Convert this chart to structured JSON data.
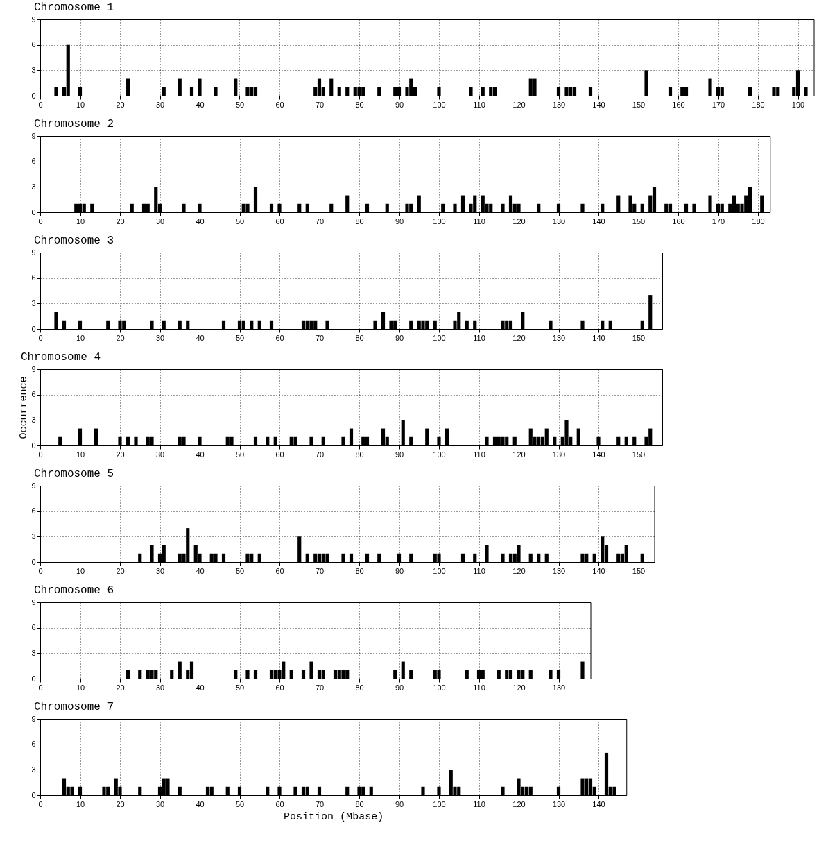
{
  "chart_data": [
    {
      "type": "bar",
      "title": "Chromosome 1",
      "color": "#000000",
      "grid": true,
      "ylim": [
        0,
        9
      ],
      "yticks": [
        0,
        3,
        6,
        9
      ],
      "xlim": [
        0,
        194
      ],
      "xticks": [
        0,
        10,
        20,
        30,
        40,
        50,
        60,
        70,
        80,
        90,
        100,
        110,
        120,
        130,
        140,
        150,
        160,
        170,
        180,
        190
      ],
      "x": [
        4,
        6,
        7,
        10,
        22,
        31,
        35,
        38,
        40,
        44,
        49,
        52,
        53,
        54,
        69,
        70,
        71,
        73,
        75,
        77,
        79,
        80,
        81,
        85,
        89,
        90,
        92,
        93,
        94,
        100,
        108,
        111,
        113,
        114,
        123,
        124,
        130,
        132,
        133,
        134,
        138,
        152,
        158,
        161,
        162,
        168,
        170,
        171,
        178,
        184,
        185,
        189,
        190,
        192
      ],
      "values": [
        1,
        1,
        6,
        1,
        2,
        1,
        2,
        1,
        2,
        1,
        2,
        1,
        1,
        1,
        1,
        2,
        1,
        2,
        1,
        1,
        1,
        1,
        1,
        1,
        1,
        1,
        1,
        2,
        1,
        1,
        1,
        1,
        1,
        1,
        2,
        2,
        1,
        1,
        1,
        1,
        1,
        3,
        1,
        1,
        1,
        2,
        1,
        1,
        1,
        1,
        1,
        1,
        3,
        1
      ]
    },
    {
      "type": "bar",
      "title": "Chromosome 2",
      "color": "#000000",
      "grid": true,
      "ylim": [
        0,
        9
      ],
      "yticks": [
        0,
        3,
        6,
        9
      ],
      "xlim": [
        0,
        183
      ],
      "xticks": [
        0,
        10,
        20,
        30,
        40,
        50,
        60,
        70,
        80,
        90,
        100,
        110,
        120,
        130,
        140,
        150,
        160,
        170,
        180
      ],
      "x": [
        9,
        10,
        11,
        13,
        23,
        26,
        27,
        29,
        30,
        36,
        40,
        51,
        52,
        54,
        58,
        60,
        65,
        67,
        73,
        77,
        82,
        87,
        92,
        93,
        95,
        101,
        104,
        106,
        108,
        109,
        111,
        112,
        113,
        116,
        118,
        119,
        120,
        125,
        130,
        136,
        141,
        145,
        148,
        149,
        151,
        153,
        154,
        157,
        158,
        162,
        164,
        168,
        170,
        171,
        173,
        174,
        175,
        176,
        177,
        178,
        181
      ],
      "values": [
        1,
        1,
        1,
        1,
        1,
        1,
        1,
        3,
        1,
        1,
        1,
        1,
        1,
        3,
        1,
        1,
        1,
        1,
        1,
        2,
        1,
        1,
        1,
        1,
        2,
        1,
        1,
        2,
        1,
        2,
        2,
        1,
        1,
        1,
        2,
        1,
        1,
        1,
        1,
        1,
        1,
        2,
        2,
        1,
        1,
        2,
        3,
        1,
        1,
        1,
        1,
        2,
        1,
        1,
        1,
        2,
        1,
        1,
        2,
        3,
        2
      ]
    },
    {
      "type": "bar",
      "title": "Chromosome 3",
      "color": "#000000",
      "grid": true,
      "ylim": [
        0,
        9
      ],
      "yticks": [
        0,
        3,
        6,
        9
      ],
      "xlim": [
        0,
        156
      ],
      "xticks": [
        0,
        10,
        20,
        30,
        40,
        50,
        60,
        70,
        80,
        90,
        100,
        110,
        120,
        130,
        140,
        150
      ],
      "x": [
        4,
        6,
        10,
        17,
        20,
        21,
        28,
        31,
        35,
        37,
        46,
        50,
        51,
        53,
        55,
        58,
        66,
        67,
        68,
        69,
        72,
        84,
        86,
        88,
        89,
        93,
        95,
        96,
        97,
        99,
        104,
        105,
        107,
        109,
        116,
        117,
        118,
        121,
        128,
        136,
        141,
        143,
        151,
        153
      ],
      "values": [
        2,
        1,
        1,
        1,
        1,
        1,
        1,
        1,
        1,
        1,
        1,
        1,
        1,
        1,
        1,
        1,
        1,
        1,
        1,
        1,
        1,
        1,
        2,
        1,
        1,
        1,
        1,
        1,
        1,
        1,
        1,
        2,
        1,
        1,
        1,
        1,
        1,
        2,
        1,
        1,
        1,
        1,
        1,
        4
      ]
    },
    {
      "type": "bar",
      "title": "Chromosome 4",
      "ylabel": "Occurrence",
      "color": "#000000",
      "grid": true,
      "ylim": [
        0,
        9
      ],
      "yticks": [
        0,
        3,
        6,
        9
      ],
      "xlim": [
        0,
        156
      ],
      "xticks": [
        0,
        10,
        20,
        30,
        40,
        50,
        60,
        70,
        80,
        90,
        100,
        110,
        120,
        130,
        140,
        150
      ],
      "x": [
        5,
        10,
        14,
        20,
        22,
        24,
        27,
        28,
        35,
        36,
        40,
        47,
        48,
        54,
        57,
        59,
        63,
        64,
        68,
        71,
        76,
        78,
        81,
        82,
        86,
        87,
        91,
        93,
        97,
        100,
        102,
        112,
        114,
        115,
        116,
        117,
        119,
        123,
        124,
        125,
        126,
        127,
        129,
        131,
        132,
        133,
        135,
        140,
        145,
        147,
        149,
        152,
        153
      ],
      "values": [
        1,
        2,
        2,
        1,
        1,
        1,
        1,
        1,
        1,
        1,
        1,
        1,
        1,
        1,
        1,
        1,
        1,
        1,
        1,
        1,
        1,
        2,
        1,
        1,
        2,
        1,
        3,
        1,
        2,
        1,
        2,
        1,
        1,
        1,
        1,
        1,
        1,
        2,
        1,
        1,
        1,
        2,
        1,
        1,
        3,
        1,
        2,
        1,
        1,
        1,
        1,
        1,
        2
      ]
    },
    {
      "type": "bar",
      "title": "Chromosome 5",
      "color": "#000000",
      "grid": true,
      "ylim": [
        0,
        9
      ],
      "yticks": [
        0,
        3,
        6,
        9
      ],
      "xlim": [
        0,
        154
      ],
      "xticks": [
        0,
        10,
        20,
        30,
        40,
        50,
        60,
        70,
        80,
        90,
        100,
        110,
        120,
        130,
        140,
        150
      ],
      "x": [
        25,
        28,
        30,
        31,
        35,
        36,
        37,
        39,
        40,
        43,
        44,
        46,
        52,
        53,
        55,
        65,
        67,
        69,
        70,
        71,
        72,
        76,
        78,
        82,
        85,
        90,
        93,
        99,
        100,
        106,
        109,
        112,
        116,
        118,
        119,
        120,
        123,
        125,
        127,
        136,
        137,
        139,
        141,
        142,
        145,
        146,
        147,
        151
      ],
      "values": [
        1,
        2,
        1,
        2,
        1,
        1,
        4,
        2,
        1,
        1,
        1,
        1,
        1,
        1,
        1,
        3,
        1,
        1,
        1,
        1,
        1,
        1,
        1,
        1,
        1,
        1,
        1,
        1,
        1,
        1,
        1,
        2,
        1,
        1,
        1,
        2,
        1,
        1,
        1,
        1,
        1,
        1,
        3,
        2,
        1,
        1,
        2,
        1
      ]
    },
    {
      "type": "bar",
      "title": "Chromosome 6",
      "color": "#000000",
      "grid": true,
      "ylim": [
        0,
        9
      ],
      "yticks": [
        0,
        3,
        6,
        9
      ],
      "xlim": [
        0,
        138
      ],
      "xticks": [
        0,
        10,
        20,
        30,
        40,
        50,
        60,
        70,
        80,
        90,
        100,
        110,
        120,
        130
      ],
      "x": [
        22,
        25,
        27,
        28,
        29,
        33,
        35,
        37,
        38,
        49,
        52,
        54,
        58,
        59,
        60,
        61,
        63,
        66,
        68,
        70,
        71,
        74,
        75,
        76,
        77,
        89,
        91,
        93,
        99,
        100,
        107,
        110,
        111,
        115,
        117,
        118,
        120,
        121,
        123,
        128,
        130,
        136
      ],
      "values": [
        1,
        1,
        1,
        1,
        1,
        1,
        2,
        1,
        2,
        1,
        1,
        1,
        1,
        1,
        1,
        2,
        1,
        1,
        2,
        1,
        1,
        1,
        1,
        1,
        1,
        1,
        2,
        1,
        1,
        1,
        1,
        1,
        1,
        1,
        1,
        1,
        1,
        1,
        1,
        1,
        1,
        2
      ]
    },
    {
      "type": "bar",
      "title": "Chromosome 7",
      "xlabel": "Position (Mbase)",
      "color": "#000000",
      "grid": true,
      "ylim": [
        0,
        9
      ],
      "yticks": [
        0,
        3,
        6,
        9
      ],
      "xlim": [
        0,
        147
      ],
      "xticks": [
        0,
        10,
        20,
        30,
        40,
        50,
        60,
        70,
        80,
        90,
        100,
        110,
        120,
        130,
        140
      ],
      "x": [
        6,
        7,
        8,
        10,
        16,
        17,
        19,
        20,
        25,
        30,
        31,
        32,
        35,
        42,
        43,
        47,
        50,
        57,
        60,
        64,
        66,
        67,
        70,
        77,
        80,
        81,
        83,
        96,
        100,
        103,
        104,
        105,
        116,
        120,
        121,
        122,
        123,
        130,
        136,
        137,
        138,
        139,
        142,
        143,
        144
      ],
      "values": [
        2,
        1,
        1,
        1,
        1,
        1,
        2,
        1,
        1,
        1,
        2,
        2,
        1,
        1,
        1,
        1,
        1,
        1,
        1,
        1,
        1,
        1,
        1,
        1,
        1,
        1,
        1,
        1,
        1,
        3,
        1,
        1,
        1,
        2,
        1,
        1,
        1,
        1,
        2,
        2,
        2,
        1,
        5,
        1,
        1
      ]
    }
  ]
}
